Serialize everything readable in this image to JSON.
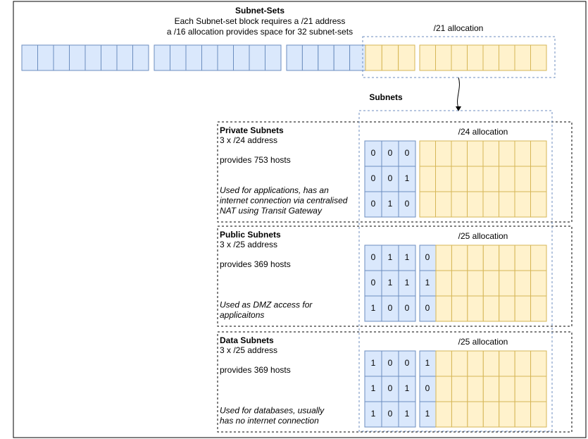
{
  "header": {
    "title": "Subnet-Sets",
    "lines": [
      "Each Subnet-set block requires a /21 address",
      "a /16 allocation provides space for 32 subnet-sets"
    ]
  },
  "set_allocation": "/21 allocation",
  "subnets_label": "Subnets",
  "sections": [
    {
      "title": "Private Subnets",
      "address": "3 x /24 address",
      "hosts": "provides 753 hosts",
      "description": [
        "Used for applications, has an",
        "internet connection via centralised",
        "NAT using Transit Gateway"
      ],
      "allocation": "/24 allocation",
      "bits": [
        [
          0,
          0,
          0
        ],
        [
          0,
          0,
          1
        ],
        [
          0,
          1,
          0
        ]
      ]
    },
    {
      "title": "Public Subnets",
      "address": "3 x /25 address",
      "hosts": "provides 369 hosts",
      "description": [
        "Used as DMZ access for",
        "applicaitons"
      ],
      "allocation": "/25 allocation",
      "bits": [
        [
          0,
          1,
          1
        ],
        [
          0,
          1,
          1
        ],
        [
          1,
          0,
          0
        ]
      ],
      "extra_bits": [
        0,
        1,
        0
      ]
    },
    {
      "title": "Data Subnets",
      "address": "3 x /25 address",
      "hosts": "provides 369 hosts",
      "description": [
        "Used for databases, usually",
        "has no internet connection"
      ],
      "allocation": "/25 allocation",
      "bits": [
        [
          1,
          0,
          0
        ],
        [
          1,
          0,
          1
        ],
        [
          1,
          0,
          1
        ]
      ],
      "extra_bits": [
        1,
        0,
        1
      ]
    }
  ]
}
